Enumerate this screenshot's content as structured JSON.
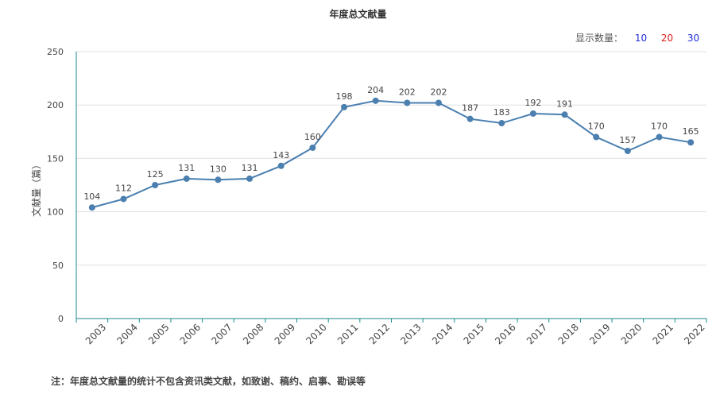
{
  "header": {
    "count_label": "显示数量：",
    "count_options": [
      "10",
      "20",
      "30"
    ]
  },
  "footnote": "注：年度总文献量的统计不包含资讯类文献，如致谢、稿约、启事、勘误等",
  "colors": {
    "line": "#4a7fb0",
    "axis": "#1a8a8a",
    "grid": "#e0e0e0"
  },
  "chart_data": {
    "type": "line",
    "title": "年度总文献量",
    "ylabel": "文献量（篇）",
    "xlabel": "",
    "ylim": [
      0,
      250
    ],
    "yticks": [
      0,
      50,
      100,
      150,
      200,
      250
    ],
    "grid": true,
    "categories": [
      "2003",
      "2004",
      "2005",
      "2006",
      "2007",
      "2008",
      "2009",
      "2010",
      "2011",
      "2012",
      "2013",
      "2014",
      "2015",
      "2016",
      "2017",
      "2018",
      "2019",
      "2020",
      "2021",
      "2022"
    ],
    "series": [
      {
        "values": [
          104,
          112,
          125,
          131,
          130,
          131,
          143,
          160,
          198,
          204,
          202,
          202,
          187,
          183,
          192,
          191,
          170,
          157,
          170,
          165
        ]
      }
    ]
  }
}
